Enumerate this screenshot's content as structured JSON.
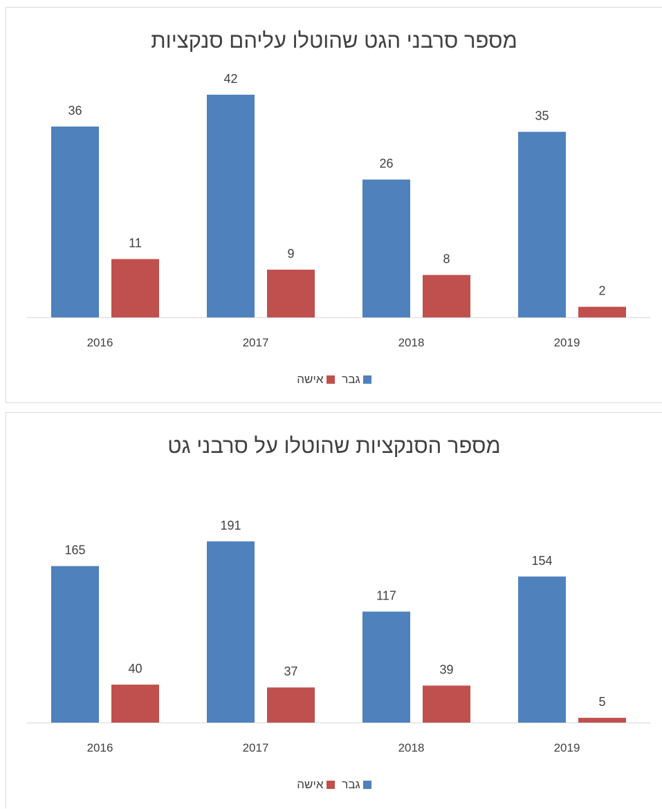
{
  "chart_data": [
    {
      "type": "bar",
      "title": "מספר סרבני הגט שהוטלו עליהם סנקציות",
      "categories": [
        "2016",
        "2017",
        "2018",
        "2019"
      ],
      "series": [
        {
          "name": "גבר",
          "color": "#4f81bd",
          "values": [
            36,
            42,
            26,
            35
          ]
        },
        {
          "name": "אישה",
          "color": "#c0504d",
          "values": [
            11,
            9,
            8,
            2
          ]
        }
      ],
      "xlabel": "",
      "ylabel": "",
      "ylim": [
        0,
        42
      ],
      "grid": false,
      "legend": "bottom"
    },
    {
      "type": "bar",
      "title": "מספר הסנקציות שהוטלו על סרבני גט",
      "categories": [
        "2016",
        "2017",
        "2018",
        "2019"
      ],
      "series": [
        {
          "name": "גבר",
          "color": "#4f81bd",
          "values": [
            165,
            191,
            117,
            154
          ]
        },
        {
          "name": "אישה",
          "color": "#c0504d",
          "values": [
            40,
            37,
            39,
            5
          ]
        }
      ],
      "xlabel": "",
      "ylabel": "",
      "ylim": [
        0,
        191
      ],
      "grid": false,
      "legend": "bottom"
    }
  ]
}
